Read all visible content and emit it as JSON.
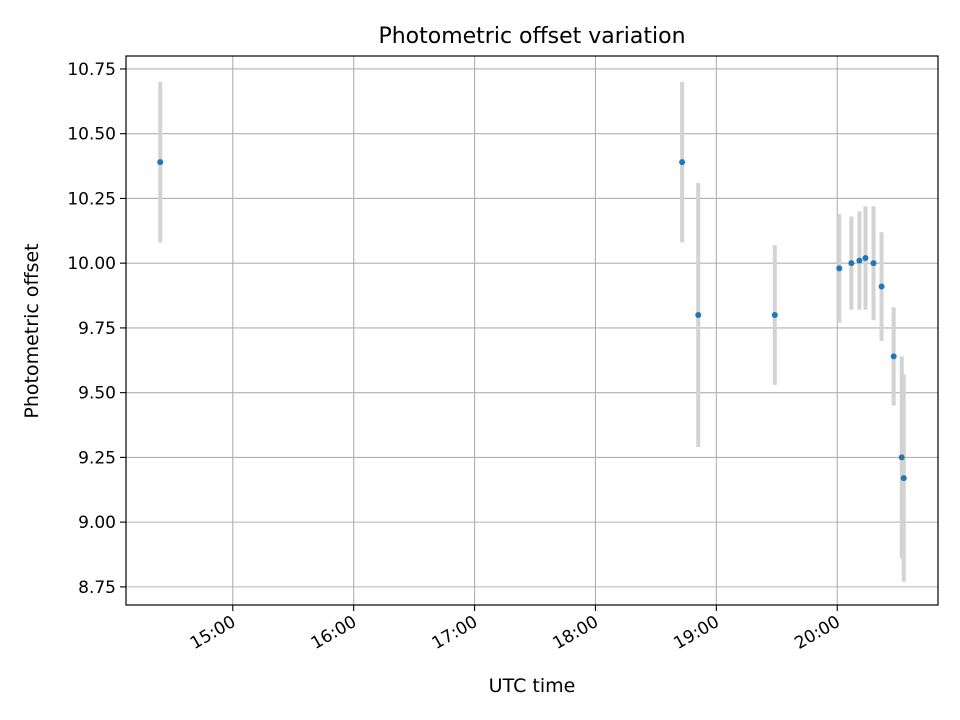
{
  "chart_data": {
    "type": "scatter",
    "title": "Photometric offset variation",
    "xlabel": "UTC time",
    "ylabel": "Photometric offset",
    "x_axis_type": "time",
    "x_range": [
      "14:07",
      "20:50"
    ],
    "ylim": [
      8.68,
      10.8
    ],
    "x_ticks": [
      "15:00",
      "16:00",
      "17:00",
      "18:00",
      "19:00",
      "20:00"
    ],
    "y_ticks": [
      "8.75",
      "9.00",
      "9.25",
      "9.50",
      "9.75",
      "10.00",
      "10.25",
      "10.50",
      "10.75"
    ],
    "grid": true,
    "legend": "none",
    "point_color": "#1f77b4",
    "errorbar_color": "#d3d3d3",
    "points": [
      {
        "x": "14:24",
        "y": 10.39,
        "yerr_low": 10.08,
        "yerr_high": 10.7
      },
      {
        "x": "18:43",
        "y": 10.39,
        "yerr_low": 10.08,
        "yerr_high": 10.7
      },
      {
        "x": "18:51",
        "y": 9.8,
        "yerr_low": 9.29,
        "yerr_high": 10.31
      },
      {
        "x": "19:29",
        "y": 9.8,
        "yerr_low": 9.53,
        "yerr_high": 10.07
      },
      {
        "x": "20:01",
        "y": 9.98,
        "yerr_low": 9.77,
        "yerr_high": 10.19
      },
      {
        "x": "20:07",
        "y": 10.0,
        "yerr_low": 9.82,
        "yerr_high": 10.18
      },
      {
        "x": "20:11",
        "y": 10.01,
        "yerr_low": 9.82,
        "yerr_high": 10.2
      },
      {
        "x": "20:14",
        "y": 10.02,
        "yerr_low": 9.82,
        "yerr_high": 10.22
      },
      {
        "x": "20:18",
        "y": 10.0,
        "yerr_low": 9.78,
        "yerr_high": 10.22
      },
      {
        "x": "20:22",
        "y": 9.91,
        "yerr_low": 9.7,
        "yerr_high": 10.12
      },
      {
        "x": "20:28",
        "y": 9.64,
        "yerr_low": 9.45,
        "yerr_high": 9.83
      },
      {
        "x": "20:32",
        "y": 9.25,
        "yerr_low": 8.86,
        "yerr_high": 9.64
      },
      {
        "x": "20:33",
        "y": 9.17,
        "yerr_low": 8.77,
        "yerr_high": 9.57
      }
    ]
  }
}
